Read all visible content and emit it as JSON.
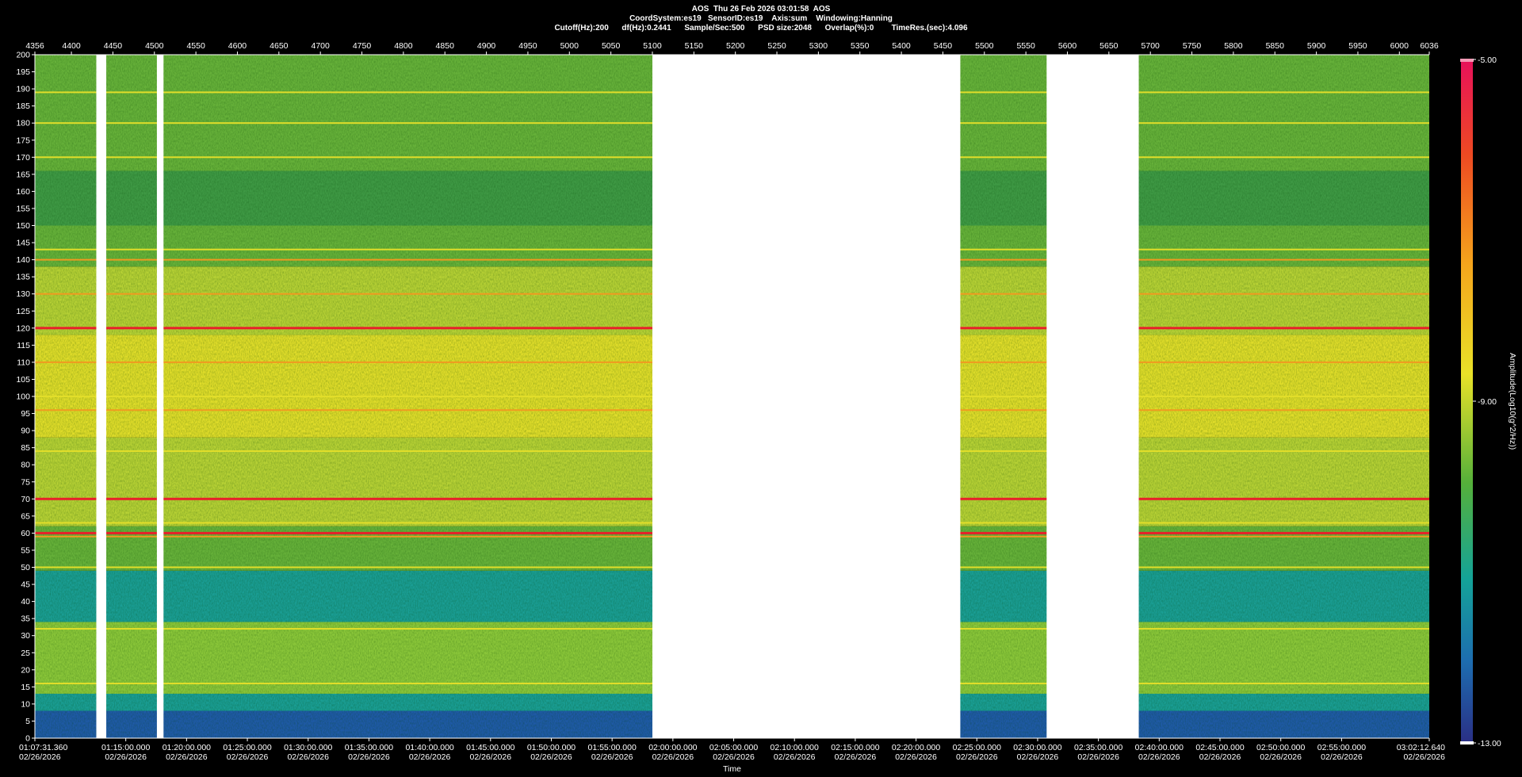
{
  "header": {
    "line1": "AOS  Thu 26 Feb 2026 03:01:58  AOS",
    "line2": "CoordSystem:es19   SensorID:es19    Axis:sum    Windowing:Hanning",
    "line3": "Cutoff(Hz):200      df(Hz):0.2441      Sample/Sec:500      PSD size:2048      Overlap(%):0        TimeRes.(sec):4.096"
  },
  "chart_data": {
    "type": "heatmap",
    "title": "AOS  Thu 26 Feb 2026 03:01:58  AOS",
    "xlabel": "Time",
    "ylabel": "",
    "colorbar_label": "Amplitude(Log10(g^2/Hz))",
    "colorbar_range": [
      -13.0,
      -5.0
    ],
    "colorbar_ticks": [
      "-5.00",
      "-9.00",
      "-13.00"
    ],
    "ylim": [
      0,
      200
    ],
    "y_ticks": [
      0,
      5,
      10,
      15,
      20,
      25,
      30,
      35,
      40,
      45,
      50,
      55,
      60,
      65,
      70,
      75,
      80,
      85,
      90,
      95,
      100,
      105,
      110,
      115,
      120,
      125,
      130,
      135,
      140,
      145,
      150,
      155,
      160,
      165,
      170,
      175,
      180,
      185,
      190,
      195,
      200
    ],
    "top_axis_range": [
      4356,
      6036
    ],
    "top_ticks": [
      4356,
      4400,
      4450,
      4500,
      4550,
      4600,
      4650,
      4700,
      4750,
      4800,
      4850,
      4900,
      4950,
      5000,
      5050,
      5100,
      5150,
      5200,
      5250,
      5300,
      5350,
      5400,
      5450,
      5500,
      5550,
      5600,
      5650,
      5700,
      5750,
      5800,
      5850,
      5900,
      5950,
      6000,
      6036
    ],
    "bottom_ticks": [
      {
        "t": 0,
        "time": "01:07:31.360",
        "date": "02/26/2026"
      },
      {
        "t": 448.6,
        "time": "01:15:00.000",
        "date": "02/26/2026"
      },
      {
        "t": 748.6,
        "time": "01:20:00.000",
        "date": "02/26/2026"
      },
      {
        "t": 1048.6,
        "time": "01:25:00.000",
        "date": "02/26/2026"
      },
      {
        "t": 1348.6,
        "time": "01:30:00.000",
        "date": "02/26/2026"
      },
      {
        "t": 1648.6,
        "time": "01:35:00.000",
        "date": "02/26/2026"
      },
      {
        "t": 1948.6,
        "time": "01:40:00.000",
        "date": "02/26/2026"
      },
      {
        "t": 2248.6,
        "time": "01:45:00.000",
        "date": "02/26/2026"
      },
      {
        "t": 2548.6,
        "time": "01:50:00.000",
        "date": "02/26/2026"
      },
      {
        "t": 2848.6,
        "time": "01:55:00.000",
        "date": "02/26/2026"
      },
      {
        "t": 3148.6,
        "time": "02:00:00.000",
        "date": "02/26/2026"
      },
      {
        "t": 3448.6,
        "time": "02:05:00.000",
        "date": "02/26/2026"
      },
      {
        "t": 3748.6,
        "time": "02:10:00.000",
        "date": "02/26/2026"
      },
      {
        "t": 4048.6,
        "time": "02:15:00.000",
        "date": "02/26/2026"
      },
      {
        "t": 4348.6,
        "time": "02:20:00.000",
        "date": "02/26/2026"
      },
      {
        "t": 4648.6,
        "time": "02:25:00.000",
        "date": "02/26/2026"
      },
      {
        "t": 4948.6,
        "time": "02:30:00.000",
        "date": "02/26/2026"
      },
      {
        "t": 5248.6,
        "time": "02:35:00.000",
        "date": "02/26/2026"
      },
      {
        "t": 5548.6,
        "time": "02:40:00.000",
        "date": "02/26/2026"
      },
      {
        "t": 5848.6,
        "time": "02:45:00.000",
        "date": "02/26/2026"
      },
      {
        "t": 6148.6,
        "time": "02:50:00.000",
        "date": "02/26/2026"
      },
      {
        "t": 6448.6,
        "time": "02:55:00.000",
        "date": "02/26/2026"
      },
      {
        "t": 6881.3,
        "time": "03:02:12.640",
        "date": "02/26/2026"
      }
    ],
    "x_span": 6881.3,
    "data_gaps": [
      [
        4430,
        4442
      ],
      [
        4503,
        4511
      ],
      [
        5100,
        5471
      ],
      [
        5575,
        5686
      ]
    ],
    "tonal_lines": [
      {
        "hz": 120,
        "level": "red"
      },
      {
        "hz": 70,
        "level": "red"
      },
      {
        "hz": 60,
        "level": "red"
      },
      {
        "hz": 59,
        "level": "orange"
      },
      {
        "hz": 110,
        "level": "orange"
      },
      {
        "hz": 140,
        "level": "orange"
      },
      {
        "hz": 96,
        "level": "orange"
      },
      {
        "hz": 130,
        "level": "orange"
      },
      {
        "hz": 189,
        "level": "yellow"
      },
      {
        "hz": 180,
        "level": "yellow"
      },
      {
        "hz": 170,
        "level": "yellow"
      },
      {
        "hz": 100,
        "level": "yellow"
      },
      {
        "hz": 84,
        "level": "yellow"
      },
      {
        "hz": 50,
        "level": "yellow"
      },
      {
        "hz": 32,
        "level": "yellow"
      },
      {
        "hz": 16,
        "level": "yellow"
      },
      {
        "hz": 143,
        "level": "yellow"
      },
      {
        "hz": 63,
        "level": "yellow"
      }
    ],
    "background_bands": [
      {
        "from": 0,
        "to": 8,
        "level": "blue"
      },
      {
        "from": 8,
        "to": 13,
        "level": "teal"
      },
      {
        "from": 13,
        "to": 34,
        "level": "lightgreen"
      },
      {
        "from": 34,
        "to": 49,
        "level": "teal"
      },
      {
        "from": 49,
        "to": 62,
        "level": "green"
      },
      {
        "from": 62,
        "to": 88,
        "level": "yellowgreen"
      },
      {
        "from": 88,
        "to": 118,
        "level": "yellow"
      },
      {
        "from": 118,
        "to": 138,
        "level": "yellowgreen"
      },
      {
        "from": 138,
        "to": 150,
        "level": "green"
      },
      {
        "from": 150,
        "to": 166,
        "level": "darkgreen"
      },
      {
        "from": 166,
        "to": 200,
        "level": "green"
      }
    ],
    "colors": {
      "blue": "#1f5aa8",
      "teal": "#1a9e95",
      "lightgreen": "#8cc83a",
      "green": "#67b23a",
      "darkgreen": "#3f9a45",
      "yellowgreen": "#b8d235",
      "yellow": "#e2de2a",
      "orange": "#f09a20",
      "red": "#e8202a",
      "gap": "#ffffff",
      "background": "#000000"
    }
  }
}
